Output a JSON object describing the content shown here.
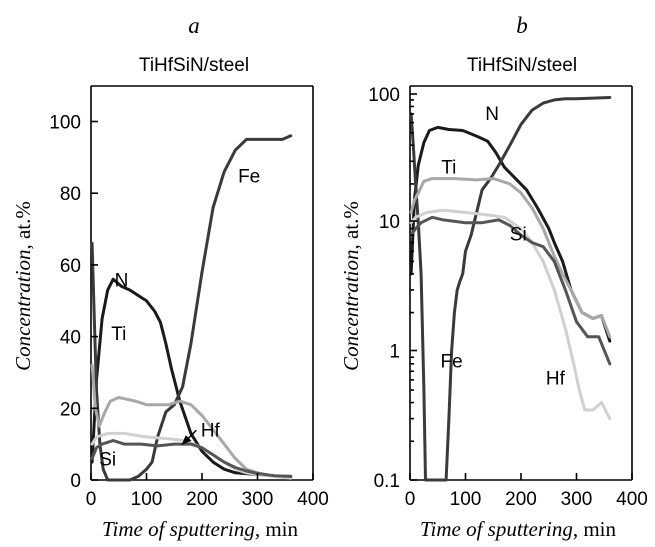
{
  "panels": [
    {
      "title": "a",
      "subtitle": "TiHfSiN/steel",
      "chart_data": {
        "type": "line",
        "yscale": "linear",
        "xlabel_italic": "Time of sputtering",
        "xlabel_unit": ", min",
        "ylabel_italic": "Concentration",
        "ylabel_unit": ", at.%",
        "xlim": [
          0,
          400
        ],
        "ylim": [
          0,
          110
        ],
        "xticks": [
          0,
          100,
          200,
          300,
          400
        ],
        "yticks": [
          0,
          20,
          40,
          60,
          80,
          100
        ],
        "series": [
          {
            "name": "N",
            "color": "#1a1a1a",
            "label_at": [
              55,
              54
            ],
            "points": [
              [
                2,
                5
              ],
              [
                10,
                28
              ],
              [
                20,
                45
              ],
              [
                30,
                53
              ],
              [
                40,
                56
              ],
              [
                55,
                54
              ],
              [
                70,
                53
              ],
              [
                90,
                51
              ],
              [
                100,
                50
              ],
              [
                115,
                47
              ],
              [
                125,
                44
              ],
              [
                135,
                38
              ],
              [
                145,
                31
              ],
              [
                160,
                22
              ],
              [
                180,
                13
              ],
              [
                200,
                8
              ],
              [
                220,
                5
              ],
              [
                240,
                3
              ],
              [
                260,
                2
              ],
              [
                300,
                1.5
              ],
              [
                340,
                1
              ],
              [
                360,
                1
              ]
            ]
          },
          {
            "name": "Fe",
            "color": "#3a3a3a",
            "label_at": [
              285,
              83
            ],
            "points": [
              [
                2,
                66
              ],
              [
                6,
                45
              ],
              [
                10,
                25
              ],
              [
                16,
                10
              ],
              [
                22,
                3
              ],
              [
                30,
                0
              ],
              [
                70,
                0
              ],
              [
                85,
                1
              ],
              [
                100,
                3
              ],
              [
                110,
                5
              ],
              [
                120,
                12
              ],
              [
                135,
                19
              ],
              [
                150,
                21
              ],
              [
                165,
                26
              ],
              [
                180,
                38
              ],
              [
                200,
                58
              ],
              [
                220,
                76
              ],
              [
                240,
                86
              ],
              [
                260,
                92
              ],
              [
                280,
                95
              ],
              [
                300,
                95
              ],
              [
                320,
                95
              ],
              [
                335,
                95
              ],
              [
                345,
                95
              ],
              [
                360,
                96
              ]
            ]
          },
          {
            "name": "Ti",
            "color": "#a8a8a8",
            "label_at": [
              50,
              39
            ],
            "points": [
              [
                2,
                32
              ],
              [
                8,
                20
              ],
              [
                15,
                15
              ],
              [
                25,
                19
              ],
              [
                35,
                22
              ],
              [
                50,
                23
              ],
              [
                80,
                22
              ],
              [
                100,
                21
              ],
              [
                120,
                21
              ],
              [
                140,
                21
              ],
              [
                160,
                22
              ],
              [
                180,
                21
              ],
              [
                200,
                18
              ],
              [
                220,
                14
              ],
              [
                240,
                10
              ],
              [
                260,
                6
              ],
              [
                280,
                3
              ],
              [
                300,
                2
              ],
              [
                330,
                1
              ],
              [
                360,
                1
              ]
            ]
          },
          {
            "name": "Hf",
            "color": "#d0d0d0",
            "label_at": [
              215,
              12.2
            ],
            "points": [
              [
                2,
                10
              ],
              [
                10,
                12
              ],
              [
                30,
                13
              ],
              [
                60,
                13
              ],
              [
                100,
                12
              ],
              [
                140,
                11.5
              ],
              [
                170,
                11
              ],
              [
                200,
                9
              ],
              [
                220,
                7
              ],
              [
                240,
                5
              ],
              [
                260,
                3
              ],
              [
                280,
                2
              ],
              [
                300,
                1.5
              ],
              [
                330,
                1
              ],
              [
                360,
                0.5
              ]
            ]
          },
          {
            "name": "Si",
            "color": "#555555",
            "label_at": [
              30,
              4
            ],
            "points": [
              [
                2,
                6
              ],
              [
                10,
                9
              ],
              [
                20,
                10
              ],
              [
                40,
                11
              ],
              [
                60,
                10
              ],
              [
                90,
                10
              ],
              [
                120,
                9.5
              ],
              [
                150,
                10
              ],
              [
                180,
                10
              ],
              [
                200,
                9
              ],
              [
                220,
                7
              ],
              [
                240,
                5
              ],
              [
                260,
                3.5
              ],
              [
                280,
                2.5
              ],
              [
                300,
                1.8
              ],
              [
                330,
                1.2
              ],
              [
                360,
                1
              ]
            ]
          }
        ],
        "annotations": [
          {
            "text": "Hf",
            "target": [
              150,
              10.8
            ]
          }
        ]
      }
    },
    {
      "title": "b",
      "subtitle": "TiHfSiN/steel",
      "chart_data": {
        "type": "line",
        "yscale": "log",
        "xlabel_italic": "Time of sputtering",
        "xlabel_unit": ", min",
        "ylabel_italic": "Concentration",
        "ylabel_unit": ", at.%",
        "xlim": [
          0,
          400
        ],
        "ylim": [
          0.1,
          100
        ],
        "xticks": [
          0,
          100,
          200,
          300,
          400
        ],
        "yticks": [
          0.1,
          1,
          10,
          100
        ],
        "ytick_labels": [
          "0.1",
          "1",
          "10",
          "100"
        ],
        "series": [
          {
            "name": "N",
            "color": "#1a1a1a",
            "label_at": [
              148,
              63
            ],
            "points": [
              [
                2,
                4
              ],
              [
                8,
                15
              ],
              [
                15,
                28
              ],
              [
                25,
                42
              ],
              [
                35,
                52
              ],
              [
                50,
                55
              ],
              [
                70,
                53
              ],
              [
                95,
                52
              ],
              [
                110,
                49
              ],
              [
                125,
                46
              ],
              [
                140,
                43
              ],
              [
                155,
                35
              ],
              [
                170,
                27
              ],
              [
                190,
                22
              ],
              [
                210,
                18
              ],
              [
                230,
                13
              ],
              [
                250,
                9
              ],
              [
                260,
                7
              ],
              [
                275,
                5
              ],
              [
                290,
                3
              ],
              [
                310,
                2
              ],
              [
                330,
                1.8
              ],
              [
                345,
                1.9
              ],
              [
                360,
                1.2
              ]
            ]
          },
          {
            "name": "Fe",
            "color": "#3a3a3a",
            "label_at": [
              75,
              0.75
            ],
            "points": [
              [
                2,
                70
              ],
              [
                6,
                40
              ],
              [
                10,
                20
              ],
              [
                15,
                10
              ],
              [
                20,
                4
              ],
              [
                25,
                0.5
              ],
              [
                28,
                0.1
              ],
              [
                32,
                0.1
              ],
              [
                38,
                0.1
              ],
              [
                45,
                0.1
              ],
              [
                55,
                0.1
              ],
              [
                65,
                0.1
              ],
              [
                70,
                0.3
              ],
              [
                75,
                1
              ],
              [
                80,
                2
              ],
              [
                85,
                3
              ],
              [
                90,
                3.5
              ],
              [
                95,
                4
              ],
              [
                100,
                6
              ],
              [
                110,
                8
              ],
              [
                120,
                12
              ],
              [
                130,
                18
              ],
              [
                145,
                22
              ],
              [
                160,
                28
              ],
              [
                180,
                40
              ],
              [
                200,
                58
              ],
              [
                220,
                75
              ],
              [
                240,
                85
              ],
              [
                260,
                90
              ],
              [
                280,
                92
              ],
              [
                300,
                92
              ],
              [
                330,
                93
              ],
              [
                360,
                94
              ]
            ]
          },
          {
            "name": "Ti",
            "color": "#a8a8a8",
            "label_at": [
              70,
              24
            ],
            "points": [
              [
                2,
                12
              ],
              [
                8,
                15
              ],
              [
                15,
                17
              ],
              [
                25,
                21
              ],
              [
                40,
                22
              ],
              [
                80,
                22
              ],
              [
                120,
                21.5
              ],
              [
                150,
                22
              ],
              [
                180,
                20
              ],
              [
                200,
                17
              ],
              [
                220,
                13
              ],
              [
                240,
                9
              ],
              [
                250,
                7
              ],
              [
                260,
                5.5
              ],
              [
                275,
                4
              ],
              [
                290,
                3
              ],
              [
                310,
                2
              ],
              [
                330,
                1.8
              ],
              [
                345,
                1.9
              ],
              [
                360,
                1.3
              ]
            ]
          },
          {
            "name": "Hf",
            "color": "#d0d0d0",
            "label_at": [
              262,
              0.55
            ],
            "points": [
              [
                2,
                10
              ],
              [
                10,
                11
              ],
              [
                30,
                12
              ],
              [
                60,
                12.5
              ],
              [
                100,
                12
              ],
              [
                140,
                11.5
              ],
              [
                170,
                11
              ],
              [
                200,
                9
              ],
              [
                220,
                7
              ],
              [
                240,
                5
              ],
              [
                260,
                3
              ],
              [
                280,
                1.5
              ],
              [
                295,
                0.8
              ],
              [
                305,
                0.5
              ],
              [
                315,
                0.35
              ],
              [
                330,
                0.35
              ],
              [
                345,
                0.4
              ],
              [
                360,
                0.3
              ]
            ]
          },
          {
            "name": "Si",
            "color": "#555555",
            "label_at": [
              195,
              7.3
            ],
            "points": [
              [
                2,
                8
              ],
              [
                10,
                9
              ],
              [
                20,
                10
              ],
              [
                40,
                11
              ],
              [
                60,
                10.5
              ],
              [
                100,
                10
              ],
              [
                130,
                10
              ],
              [
                160,
                10.5
              ],
              [
                180,
                9.5
              ],
              [
                200,
                8
              ],
              [
                220,
                7
              ],
              [
                240,
                6.5
              ],
              [
                260,
                5
              ],
              [
                280,
                3
              ],
              [
                300,
                1.7
              ],
              [
                320,
                1.3
              ],
              [
                340,
                1.3
              ],
              [
                360,
                0.8
              ]
            ]
          }
        ],
        "annotations": []
      }
    }
  ]
}
